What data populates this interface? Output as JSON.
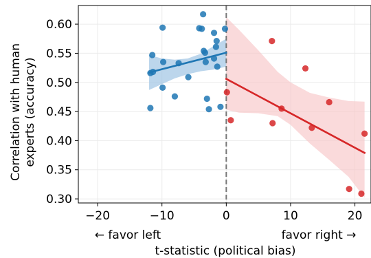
{
  "chart_data": {
    "type": "scatter",
    "xlabel": "t-statistic (political bias)",
    "ylabel_line1": "Correlation with human",
    "ylabel_line2": "experts (accuracy)",
    "direction_left": "← favor left",
    "direction_right": "favor right →",
    "xlim": [
      -23,
      22.5
    ],
    "ylim": [
      0.293,
      0.632
    ],
    "xticks": [
      -20,
      -10,
      0,
      10,
      20
    ],
    "yticks": [
      0.3,
      0.35,
      0.4,
      0.45,
      0.5,
      0.55,
      0.6
    ],
    "xtick_labels": [
      "−20",
      "−10",
      "0",
      "10",
      "20"
    ],
    "ytick_labels": [
      "0.30",
      "0.35",
      "0.40",
      "0.45",
      "0.50",
      "0.55",
      "0.60"
    ],
    "grid": true,
    "vline_x": 0,
    "series": [
      {
        "color": "#1f77b4",
        "points": [
          [
            -11.8,
            0.516
          ],
          [
            -11.4,
            0.518
          ],
          [
            -11.5,
            0.547
          ],
          [
            -9.8,
            0.535
          ],
          [
            -9.9,
            0.594
          ],
          [
            -9.9,
            0.491
          ],
          [
            -11.8,
            0.456
          ],
          [
            -8.0,
            0.476
          ],
          [
            -7.4,
            0.533
          ],
          [
            -5.9,
            0.509
          ],
          [
            -4.2,
            0.593
          ],
          [
            -3.8,
            0.592
          ],
          [
            -3.6,
            0.617
          ],
          [
            -3.5,
            0.554
          ],
          [
            -3.3,
            0.551
          ],
          [
            -3.2,
            0.535
          ],
          [
            -3.0,
            0.472
          ],
          [
            -2.7,
            0.454
          ],
          [
            -1.9,
            0.541
          ],
          [
            -1.9,
            0.585
          ],
          [
            -1.6,
            0.561
          ],
          [
            -1.5,
            0.571
          ],
          [
            -1.4,
            0.527
          ],
          [
            -0.9,
            0.458
          ],
          [
            -0.2,
            0.592
          ]
        ],
        "fit": {
          "x": [
            -12,
            0
          ],
          "y": [
            0.517,
            0.551
          ]
        },
        "band": {
          "x": [
            -12,
            -10,
            -8,
            -6,
            -4,
            -2,
            0
          ],
          "lower": [
            0.487,
            0.497,
            0.507,
            0.514,
            0.519,
            0.522,
            0.527
          ],
          "upper": [
            0.547,
            0.541,
            0.539,
            0.541,
            0.549,
            0.562,
            0.575
          ]
        }
      },
      {
        "color": "#d62728",
        "points": [
          [
            0.1,
            0.483
          ],
          [
            0.7,
            0.435
          ],
          [
            7.1,
            0.571
          ],
          [
            7.2,
            0.43
          ],
          [
            8.6,
            0.455
          ],
          [
            12.3,
            0.524
          ],
          [
            13.3,
            0.422
          ],
          [
            16.0,
            0.466
          ],
          [
            19.1,
            0.317
          ],
          [
            21.0,
            0.309
          ],
          [
            21.5,
            0.412
          ]
        ],
        "fit": {
          "x": [
            0,
            21.5
          ],
          "y": [
            0.506,
            0.379
          ]
        },
        "band": {
          "x": [
            0,
            2,
            5,
            8,
            10,
            13,
            16,
            19,
            21.5
          ],
          "lower": [
            0.453,
            0.448,
            0.447,
            0.442,
            0.427,
            0.395,
            0.367,
            0.338,
            0.302
          ],
          "upper": [
            0.612,
            0.59,
            0.555,
            0.518,
            0.5,
            0.482,
            0.474,
            0.468,
            0.467
          ]
        }
      }
    ]
  }
}
